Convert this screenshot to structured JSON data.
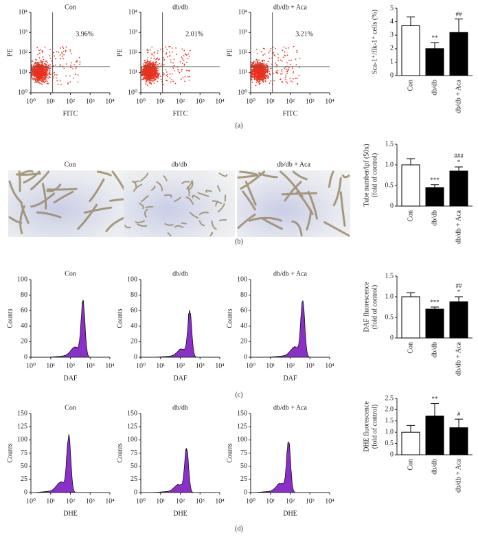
{
  "panel_labels": [
    "(a)",
    "(b)",
    "(c)",
    "(d)"
  ],
  "group_titles": [
    "Con",
    "db/db",
    "db/db + Aca"
  ],
  "flow_axes": {
    "xlim": [
      1,
      10000
    ],
    "xticks": [
      {
        "value": 1,
        "label": "10⁰"
      },
      {
        "value": 10,
        "label": "10¹"
      },
      {
        "value": 100,
        "label": "10²"
      },
      {
        "value": 1000,
        "label": "10³"
      },
      {
        "value": 10000,
        "label": "10⁴"
      }
    ],
    "log": true
  },
  "scatter": {
    "xlabel": "FITC",
    "ylabel": "PE",
    "ylim": [
      1,
      10000
    ],
    "yticks": [
      {
        "value": 1,
        "label": "10⁰"
      },
      {
        "value": 10,
        "label": "10¹"
      },
      {
        "value": 100,
        "label": "10²"
      },
      {
        "value": 1000,
        "label": "10³"
      },
      {
        "value": 10000,
        "label": "10⁴"
      }
    ],
    "quadrant_labels": [
      "3.96%",
      "2.01%",
      "3.21%"
    ],
    "color": "#e8321e"
  },
  "histograms": [
    {
      "xlabel": "DAF",
      "ylabel": "Counts",
      "ylim": [
        0,
        100
      ],
      "yticks": [
        0,
        20,
        40,
        60,
        80,
        100
      ],
      "color": "#8b2fc9"
    },
    {
      "xlabel": "DHE",
      "ylabel": "Counts",
      "ylim": [
        0,
        150
      ],
      "yticks": [
        0,
        25,
        50,
        75,
        100,
        125,
        150
      ],
      "color": "#8b2fc9"
    }
  ],
  "chart_data": [
    {
      "type": "bar",
      "ylabel": [
        "Sca-1⁺/flk-1⁺ cells (%)"
      ],
      "categories": [
        "Con",
        "db/db",
        "db/db + Aca"
      ],
      "values": [
        3.7,
        2.0,
        3.2
      ],
      "errors": [
        0.65,
        0.45,
        1.0
      ],
      "colors": [
        "#ffffff",
        "#000000",
        "#000000"
      ],
      "ylim": [
        0,
        5
      ],
      "yticks": [
        0,
        1,
        2,
        3,
        4,
        5
      ],
      "annotations": [
        [],
        [
          "**"
        ],
        [
          "##"
        ]
      ]
    },
    {
      "type": "bar",
      "ylabel": [
        "Tube number/lpf (50x)",
        "(fold of control)"
      ],
      "categories": [
        "Con",
        "db/db",
        "db/db + Aca"
      ],
      "values": [
        1.0,
        0.45,
        0.85
      ],
      "errors": [
        0.15,
        0.07,
        0.1
      ],
      "colors": [
        "#ffffff",
        "#000000",
        "#000000"
      ],
      "ylim": [
        0,
        1.5
      ],
      "yticks": [
        0,
        0.5,
        {
          "value": 1,
          "label": "1.0"
        },
        1.5
      ],
      "annotations": [
        [],
        [
          "***"
        ],
        [
          "###",
          "*"
        ]
      ]
    },
    {
      "type": "bar",
      "ylabel": [
        "DAF fluorescence",
        "(fold of control)"
      ],
      "categories": [
        "Con",
        "db/db",
        "db/db + Aca"
      ],
      "values": [
        1.0,
        0.7,
        0.88
      ],
      "errors": [
        0.1,
        0.05,
        0.12
      ],
      "colors": [
        "#ffffff",
        "#000000",
        "#000000"
      ],
      "ylim": [
        0,
        1.5
      ],
      "yticks": [
        0,
        0.5,
        {
          "value": 1,
          "label": "1.0"
        },
        1.5
      ],
      "annotations": [
        [],
        [
          "***"
        ],
        [
          "##",
          "*"
        ]
      ]
    },
    {
      "type": "bar",
      "ylabel": [
        "DHE fluorescence",
        "(fold of control)"
      ],
      "categories": [
        "Con",
        "db/db",
        "db/db + Aca"
      ],
      "values": [
        1.0,
        1.72,
        1.2
      ],
      "errors": [
        0.3,
        0.55,
        0.38
      ],
      "colors": [
        "#ffffff",
        "#000000",
        "#000000"
      ],
      "ylim": [
        0,
        2.5
      ],
      "yticks": [
        0,
        0.5,
        {
          "value": 1,
          "label": "1.0"
        },
        1.5,
        {
          "value": 2,
          "label": "2.0"
        },
        2.5
      ],
      "annotations": [
        [],
        [
          "**"
        ],
        [
          "#"
        ]
      ]
    }
  ]
}
